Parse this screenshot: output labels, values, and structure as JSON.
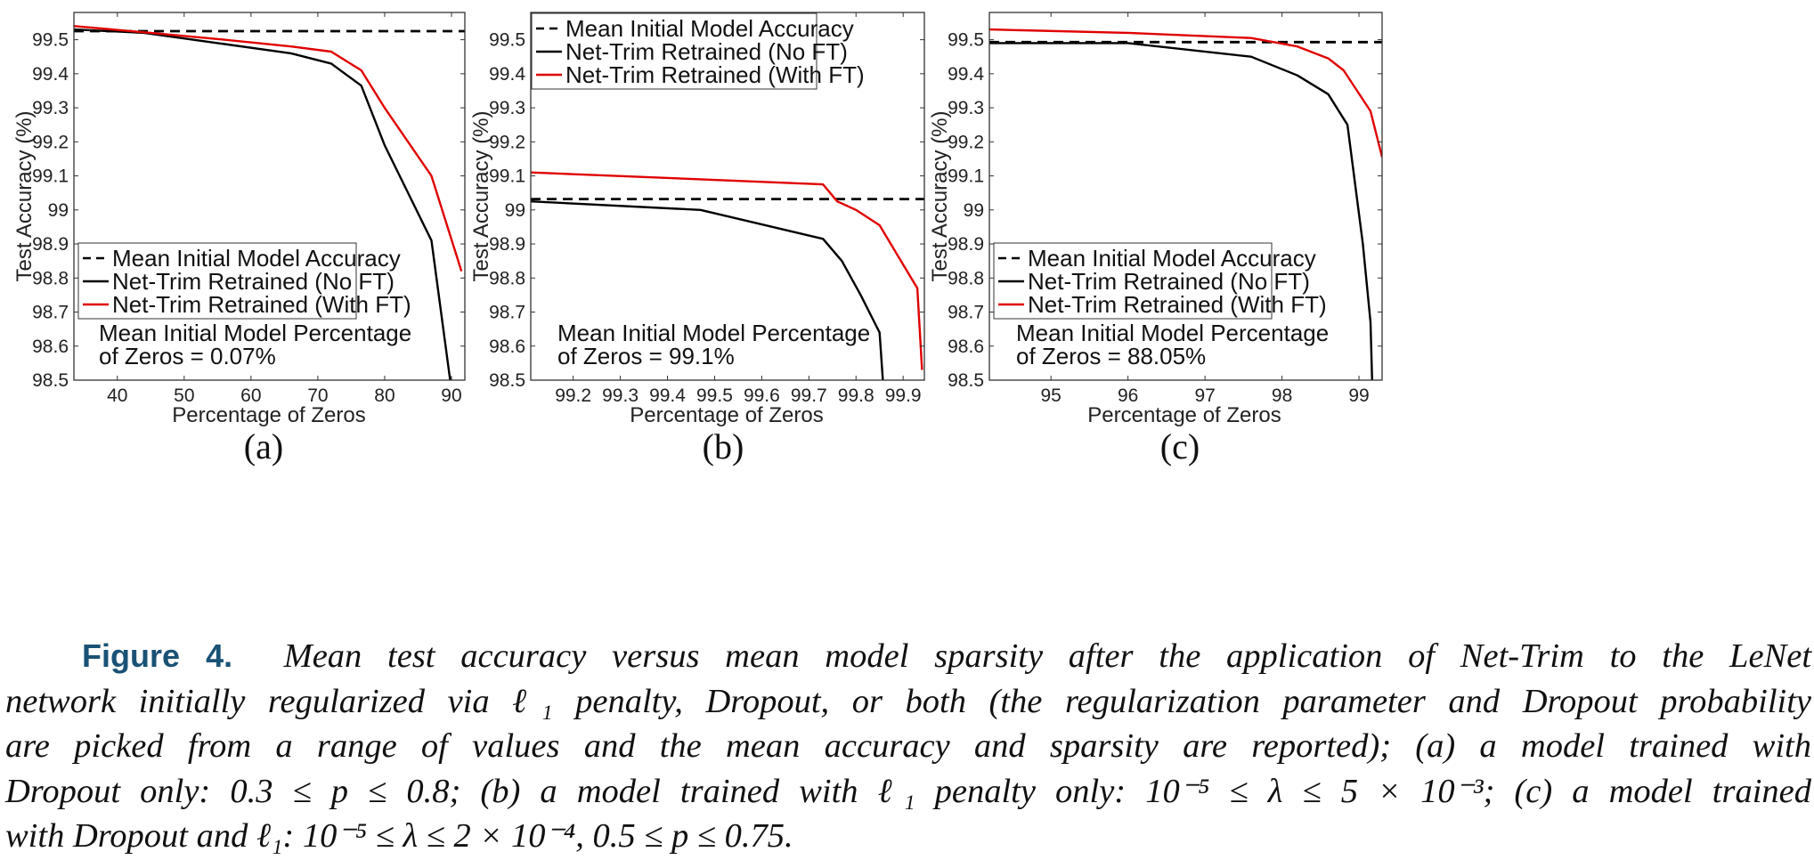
{
  "colors": {
    "dashed": "#000000",
    "no_ft": "#000000",
    "with_ft": "#e00000",
    "caption_label": "#1a5276"
  },
  "chart_data": [
    {
      "type": "line",
      "panel_label": "(a)",
      "xlabel": "Percentage of Zeros",
      "ylabel": "Test Accuracy (%)",
      "xlim": [
        33.5,
        92
      ],
      "ylim": [
        98.5,
        99.58
      ],
      "xticks": [
        40,
        50,
        60,
        70,
        80,
        90
      ],
      "yticks": [
        98.5,
        98.6,
        98.7,
        98.8,
        98.9,
        99,
        99.1,
        99.2,
        99.3,
        99.4,
        99.5
      ],
      "ytick_labels": [
        "98.5",
        "98.6",
        "98.7",
        "98.8",
        "98.9",
        "99",
        "99.1",
        "99.2",
        "99.3",
        "99.4",
        "99.5"
      ],
      "legend": [
        "Mean Initial Model Accuracy",
        "Net-Trim Retrained (No FT)",
        "Net-Trim Retrained (With FT)"
      ],
      "legend_position": "lower-left",
      "annotation": [
        "Mean Initial Model Percentage",
        "of Zeros = 0.07%"
      ],
      "series": [
        {
          "name": "Mean Initial Model Accuracy",
          "style": "dashed",
          "x": [
            33.5,
            92
          ],
          "y": [
            99.525,
            99.525
          ]
        },
        {
          "name": "Net-Trim Retrained (No FT)",
          "style": "solid-black",
          "x": [
            33.5,
            44,
            55,
            66,
            72,
            76.5,
            80,
            87,
            89.8
          ],
          "y": [
            99.53,
            99.52,
            99.49,
            99.46,
            99.43,
            99.365,
            99.19,
            98.91,
            98.5
          ]
        },
        {
          "name": "Net-Trim Retrained (With FT)",
          "style": "solid-red",
          "x": [
            33.5,
            45,
            56,
            66,
            72,
            76.5,
            80,
            87,
            91.5
          ],
          "y": [
            99.54,
            99.52,
            99.5,
            99.48,
            99.465,
            99.41,
            99.3,
            99.1,
            98.82
          ]
        }
      ]
    },
    {
      "type": "line",
      "panel_label": "(b)",
      "xlabel": "Percentage of Zeros",
      "ylabel": "Test Accuracy (%)",
      "xlim": [
        99.11,
        99.945
      ],
      "ylim": [
        98.5,
        99.58
      ],
      "xticks": [
        99.2,
        99.3,
        99.4,
        99.5,
        99.6,
        99.7,
        99.8,
        99.9
      ],
      "yticks": [
        98.5,
        98.6,
        98.7,
        98.8,
        98.9,
        99,
        99.1,
        99.2,
        99.3,
        99.4,
        99.5
      ],
      "ytick_labels": [
        "98.5",
        "98.6",
        "98.7",
        "98.8",
        "98.9",
        "99",
        "99.1",
        "99.2",
        "99.3",
        "99.4",
        "99.5"
      ],
      "legend": [
        "Mean Initial Model Accuracy",
        "Net-Trim Retrained (No FT)",
        "Net-Trim Retrained (With FT)"
      ],
      "legend_position": "top-left",
      "annotation": [
        "Mean Initial Model Percentage",
        "of Zeros = 99.1%"
      ],
      "series": [
        {
          "name": "Mean Initial Model Accuracy",
          "style": "dashed",
          "x": [
            99.11,
            99.945
          ],
          "y": [
            99.032,
            99.032
          ]
        },
        {
          "name": "Net-Trim Retrained (No FT)",
          "style": "solid-black",
          "x": [
            99.11,
            99.47,
            99.73,
            99.77,
            99.81,
            99.85,
            99.857
          ],
          "y": [
            99.025,
            99.0,
            98.915,
            98.85,
            98.75,
            98.64,
            98.5
          ]
        },
        {
          "name": "Net-Trim Retrained (With FT)",
          "style": "solid-red",
          "x": [
            99.11,
            99.47,
            99.73,
            99.76,
            99.8,
            99.85,
            99.93,
            99.94
          ],
          "y": [
            99.11,
            99.09,
            99.075,
            99.025,
            99.0,
            98.955,
            98.77,
            98.53
          ]
        }
      ]
    },
    {
      "type": "line",
      "panel_label": "(c)",
      "xlabel": "Percentage of Zeros",
      "ylabel": "Test Accuracy (%)",
      "xlim": [
        94.2,
        99.3
      ],
      "ylim": [
        98.5,
        99.58
      ],
      "xticks": [
        95,
        96,
        97,
        98,
        99
      ],
      "yticks": [
        98.5,
        98.6,
        98.7,
        98.8,
        98.9,
        99,
        99.1,
        99.2,
        99.3,
        99.4,
        99.5
      ],
      "ytick_labels": [
        "98.5",
        "98.6",
        "98.7",
        "98.8",
        "98.9",
        "99",
        "99.1",
        "99.2",
        "99.3",
        "99.4",
        "99.5"
      ],
      "legend": [
        "Mean Initial Model Accuracy",
        "Net-Trim Retrained (No FT)",
        "Net-Trim Retrained (With FT)"
      ],
      "legend_position": "lower-left",
      "annotation": [
        "Mean Initial Model Percentage",
        "of Zeros = 88.05%"
      ],
      "series": [
        {
          "name": "Mean Initial Model Accuracy",
          "style": "dashed",
          "x": [
            94.2,
            99.3
          ],
          "y": [
            99.493,
            99.493
          ]
        },
        {
          "name": "Net-Trim Retrained (No FT)",
          "style": "solid-black",
          "x": [
            94.2,
            96,
            97.6,
            98.2,
            98.6,
            98.85,
            99.05,
            99.15,
            99.17
          ],
          "y": [
            99.49,
            99.49,
            99.45,
            99.395,
            99.34,
            99.25,
            98.9,
            98.67,
            98.5
          ]
        },
        {
          "name": "Net-Trim Retrained (With FT)",
          "style": "solid-red",
          "x": [
            94.2,
            96,
            97.6,
            98.2,
            98.6,
            98.8,
            99.15,
            99.3
          ],
          "y": [
            99.53,
            99.52,
            99.505,
            99.48,
            99.445,
            99.41,
            99.29,
            99.155
          ]
        }
      ]
    }
  ],
  "caption": {
    "label": "Figure 4.",
    "lines": [
      "Mean test accuracy versus mean model sparsity after the application of Net-Trim to the LeNet",
      "network initially regularized via ℓ₁ penalty, Dropout, or both (the regularization parameter and Dropout probability",
      "are picked from a range of values and the mean accuracy and sparsity are reported); (a) a model trained with",
      "Dropout only: 0.3 ≤ p ≤ 0.8; (b) a model trained with ℓ₁ penalty only: 10⁻⁵ ≤ λ ≤ 5 × 10⁻³; (c) a model trained",
      "with Dropout and ℓ₁: 10⁻⁵ ≤ λ ≤ 2 × 10⁻⁴, 0.5 ≤ p ≤ 0.75."
    ]
  }
}
